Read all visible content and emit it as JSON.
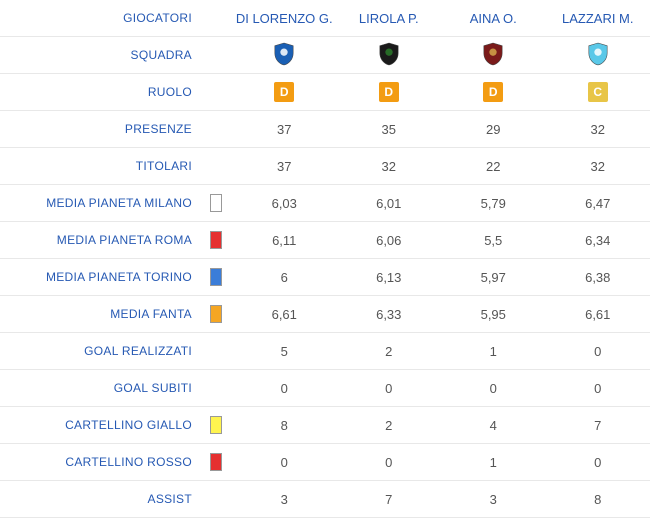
{
  "headers": {
    "label": "GIOCATORI",
    "players": [
      "DI LORENZO G.",
      "LIROLA P.",
      "AINA O.",
      "LAZZARI M."
    ]
  },
  "squadra": {
    "label": "SQUADRA",
    "shield_colors": [
      {
        "main": "#1a5fb4",
        "accent": "#ffffff"
      },
      {
        "main": "#1a1a1a",
        "accent": "#2a7a2a"
      },
      {
        "main": "#7a1a1a",
        "accent": "#d4a64a"
      },
      {
        "main": "#5ac8e8",
        "accent": "#ffffff"
      }
    ]
  },
  "ruolo": {
    "label": "RUOLO",
    "roles": [
      {
        "letter": "D",
        "bg": "#f39c12"
      },
      {
        "letter": "D",
        "bg": "#f39c12"
      },
      {
        "letter": "D",
        "bg": "#f39c12"
      },
      {
        "letter": "C",
        "bg": "#e8c547"
      }
    ]
  },
  "rows": [
    {
      "label": "PRESENZE",
      "indicator": null,
      "values": [
        "37",
        "35",
        "29",
        "32"
      ]
    },
    {
      "label": "TITOLARI",
      "indicator": null,
      "values": [
        "37",
        "32",
        "22",
        "32"
      ]
    },
    {
      "label": "MEDIA PIANETA MILANO",
      "indicator": "#ffffff",
      "values": [
        "6,03",
        "6,01",
        "5,79",
        "6,47"
      ]
    },
    {
      "label": "MEDIA PIANETA ROMA",
      "indicator": "#e53030",
      "values": [
        "6,11",
        "6,06",
        "5,5",
        "6,34"
      ]
    },
    {
      "label": "MEDIA PIANETA TORINO",
      "indicator": "#3b7dd8",
      "values": [
        "6",
        "6,13",
        "5,97",
        "6,38"
      ]
    },
    {
      "label": "MEDIA FANTA",
      "indicator": "#f5a623",
      "values": [
        "6,61",
        "6,33",
        "5,95",
        "6,61"
      ]
    },
    {
      "label": "GOAL REALIZZATI",
      "indicator": null,
      "values": [
        "5",
        "2",
        "1",
        "0"
      ]
    },
    {
      "label": "GOAL SUBITI",
      "indicator": null,
      "values": [
        "0",
        "0",
        "0",
        "0"
      ]
    },
    {
      "label": "CARTELLINO GIALLO",
      "indicator": "#fff44f",
      "values": [
        "8",
        "2",
        "4",
        "7"
      ]
    },
    {
      "label": "CARTELLINO ROSSO",
      "indicator": "#e53030",
      "values": [
        "0",
        "0",
        "1",
        "0"
      ]
    },
    {
      "label": "ASSIST",
      "indicator": null,
      "values": [
        "3",
        "7",
        "3",
        "8"
      ]
    }
  ]
}
